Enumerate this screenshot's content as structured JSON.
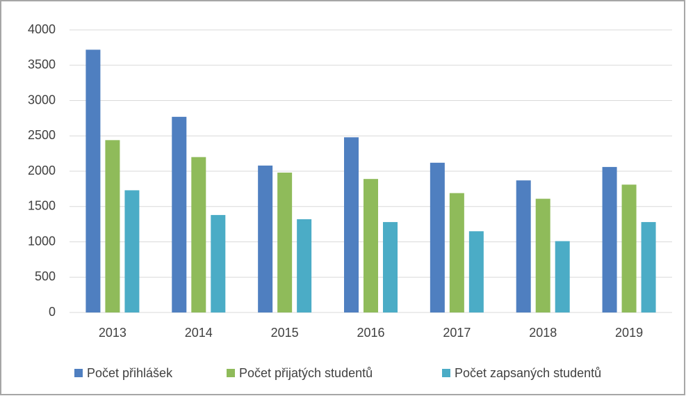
{
  "chart_data": {
    "type": "bar",
    "categories": [
      "2013",
      "2014",
      "2015",
      "2016",
      "2017",
      "2018",
      "2019"
    ],
    "series": [
      {
        "name": "Počet přihlášek",
        "color": "#4f7fc0",
        "values": [
          3720,
          2770,
          2080,
          2480,
          2120,
          1870,
          2060
        ]
      },
      {
        "name": "Počet přijatých studentů",
        "color": "#8fbb5a",
        "values": [
          2440,
          2200,
          1980,
          1890,
          1690,
          1610,
          1810
        ]
      },
      {
        "name": "Počet zapsaných studentů",
        "color": "#4bacc6",
        "values": [
          1730,
          1380,
          1320,
          1280,
          1150,
          1010,
          1280
        ]
      }
    ],
    "ylim": [
      0,
      4000
    ],
    "yticks": [
      0,
      500,
      1000,
      1500,
      2000,
      2500,
      3000,
      3500,
      4000
    ],
    "grid": true,
    "legend": "bottom"
  }
}
